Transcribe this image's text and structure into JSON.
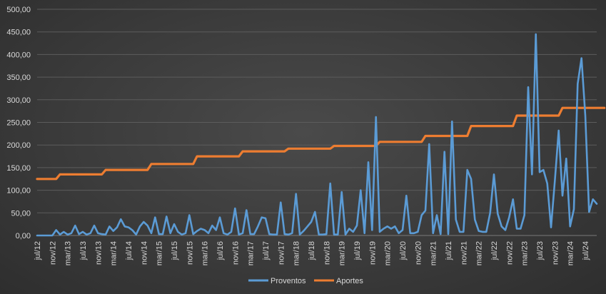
{
  "chart_data": {
    "type": "line",
    "title": "",
    "xlabel": "",
    "ylabel": "",
    "ylim": [
      0,
      500
    ],
    "y_ticks": [
      "0,00",
      "50,00",
      "100,00",
      "150,00",
      "200,00",
      "250,00",
      "300,00",
      "350,00",
      "400,00",
      "450,00",
      "500,00"
    ],
    "x_tick_labels": [
      "jul/12",
      "nov/12",
      "mar/13",
      "jul/13",
      "nov/13",
      "mar/14",
      "jul/14",
      "nov/14",
      "mar/15",
      "jul/15",
      "nov/15",
      "mar/16",
      "jul/16",
      "nov/16",
      "mar/17",
      "jul/17",
      "nov/17",
      "mar/18",
      "jul/18",
      "nov/18",
      "mar/19",
      "jul/19",
      "nov/19",
      "mar/20",
      "jul/20",
      "nov/20",
      "mar/21",
      "jul/21",
      "nov/21",
      "mar/22",
      "jul/22",
      "nov/22",
      "mar/23",
      "jul/23",
      "nov/23",
      "mar/24",
      "jul/24"
    ],
    "grid": true,
    "legend_position": "bottom",
    "series": [
      {
        "name": "Proventos",
        "color": "#5b9bd5",
        "values": [
          0,
          0,
          0,
          0,
          0,
          12,
          2,
          8,
          2,
          5,
          22,
          3,
          8,
          2,
          5,
          22,
          5,
          3,
          2,
          20,
          10,
          18,
          36,
          20,
          18,
          12,
          2,
          20,
          30,
          22,
          5,
          40,
          3,
          3,
          42,
          5,
          25,
          8,
          2,
          5,
          45,
          3,
          10,
          15,
          12,
          5,
          22,
          12,
          40,
          5,
          2,
          8,
          60,
          2,
          5,
          56,
          3,
          3,
          20,
          40,
          38,
          3,
          2,
          2,
          73,
          3,
          2,
          5,
          92,
          2,
          10,
          20,
          30,
          52,
          2,
          2,
          3,
          115,
          2,
          2,
          96,
          2,
          15,
          8,
          22,
          100,
          5,
          162,
          12,
          262,
          8,
          15,
          20,
          15,
          20,
          5,
          12,
          88,
          5,
          5,
          8,
          45,
          55,
          202,
          5,
          45,
          3,
          185,
          3,
          252,
          35,
          8,
          8,
          145,
          125,
          35,
          10,
          8,
          8,
          50,
          135,
          48,
          20,
          12,
          40,
          80,
          15,
          15,
          45,
          328,
          135,
          445,
          140,
          145,
          115,
          18,
          120,
          232,
          88,
          170,
          20,
          58,
          335,
          392,
          265,
          52,
          80,
          70
        ]
      },
      {
        "name": "Aportes",
        "color": "#ed7d31",
        "values": [
          125,
          125,
          125,
          125,
          125,
          125,
          135,
          135,
          135,
          135,
          135,
          135,
          135,
          135,
          135,
          135,
          135,
          135,
          145,
          145,
          145,
          145,
          145,
          145,
          145,
          145,
          145,
          145,
          145,
          145,
          158,
          158,
          158,
          158,
          158,
          158,
          158,
          158,
          158,
          158,
          158,
          158,
          175,
          175,
          175,
          175,
          175,
          175,
          175,
          175,
          175,
          175,
          175,
          175,
          186,
          186,
          186,
          186,
          186,
          186,
          186,
          186,
          186,
          186,
          186,
          186,
          192,
          192,
          192,
          192,
          192,
          192,
          192,
          192,
          192,
          192,
          192,
          192,
          198,
          198,
          198,
          198,
          198,
          198,
          198,
          198,
          198,
          198,
          198,
          198,
          207,
          207,
          207,
          207,
          207,
          207,
          207,
          207,
          207,
          207,
          207,
          207,
          220,
          220,
          220,
          220,
          220,
          220,
          220,
          220,
          220,
          220,
          220,
          220,
          242,
          242,
          242,
          242,
          242,
          242,
          242,
          242,
          242,
          242,
          242,
          242,
          265,
          265,
          265,
          265,
          265,
          265,
          265,
          265,
          265,
          265,
          265,
          265,
          282,
          282,
          282,
          282,
          282,
          282,
          282,
          282,
          282,
          282,
          282,
          282
        ]
      }
    ]
  }
}
